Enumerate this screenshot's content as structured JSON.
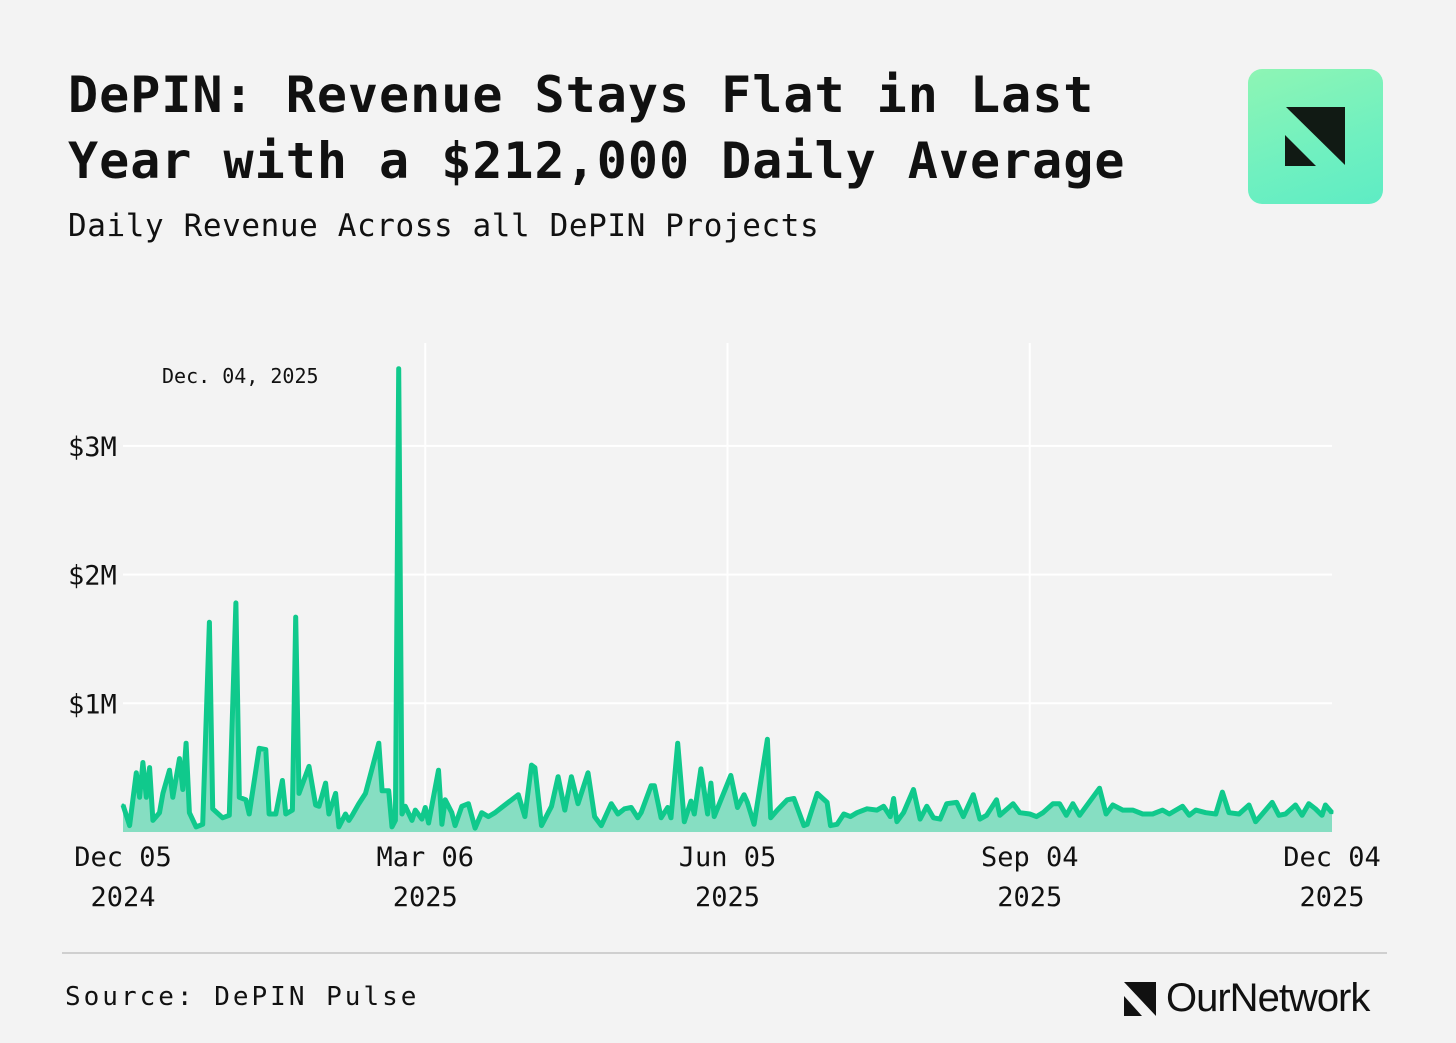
{
  "header": {
    "title_bold": "DePIN:",
    "title_rest": " Revenue Stays Flat in Last Year with a $212,000 Daily Average",
    "subtitle": "Daily Revenue Across all DePIN Projects"
  },
  "footer": {
    "source": "Source: DePIN Pulse",
    "brand": "OurNetwork"
  },
  "colors": {
    "line": "#10c98c",
    "fill": "#7fdcbf",
    "background": "#f3f3f3",
    "logo": "#6ff0c0"
  },
  "chart_data": {
    "type": "area",
    "title": "",
    "xlabel": "",
    "ylabel": "",
    "annotation": "Dec. 04, 2025",
    "xlim": [
      "2024-12-05",
      "2025-12-04"
    ],
    "ylim": [
      0,
      3.8
    ],
    "grid": true,
    "x_ticks": [
      {
        "date": "2024-12-05",
        "line1": "Dec 05",
        "line2": "2024"
      },
      {
        "date": "2025-03-06",
        "line1": "Mar 06",
        "line2": "2025"
      },
      {
        "date": "2025-06-05",
        "line1": "Jun 05",
        "line2": "2025"
      },
      {
        "date": "2025-09-04",
        "line1": "Sep 04",
        "line2": "2025"
      },
      {
        "date": "2025-12-04",
        "line1": "Dec 04",
        "line2": "2025"
      }
    ],
    "y_ticks": [
      {
        "value": 1,
        "label": "$1M"
      },
      {
        "value": 2,
        "label": "$2M"
      },
      {
        "value": 3,
        "label": "$3M"
      }
    ],
    "unit": "USD millions",
    "points": [
      [
        "2024-12-05",
        0.21
      ],
      [
        "2024-12-07",
        0.05
      ],
      [
        "2024-12-09",
        0.46
      ],
      [
        "2024-12-10",
        0.27
      ],
      [
        "2024-12-11",
        0.54
      ],
      [
        "2024-12-12",
        0.27
      ],
      [
        "2024-12-13",
        0.5
      ],
      [
        "2024-12-14",
        0.09
      ],
      [
        "2024-12-16",
        0.15
      ],
      [
        "2024-12-17",
        0.3
      ],
      [
        "2024-12-19",
        0.48
      ],
      [
        "2024-12-20",
        0.27
      ],
      [
        "2024-12-22",
        0.57
      ],
      [
        "2024-12-23",
        0.33
      ],
      [
        "2024-12-24",
        0.69
      ],
      [
        "2024-12-25",
        0.15
      ],
      [
        "2024-12-27",
        0.04
      ],
      [
        "2024-12-29",
        0.06
      ],
      [
        "2024-12-31",
        1.63
      ],
      [
        "2025-01-01",
        0.18
      ],
      [
        "2025-01-04",
        0.11
      ],
      [
        "2025-01-06",
        0.13
      ],
      [
        "2025-01-08",
        1.78
      ],
      [
        "2025-01-09",
        0.27
      ],
      [
        "2025-01-11",
        0.25
      ],
      [
        "2025-01-12",
        0.14
      ],
      [
        "2025-01-15",
        0.65
      ],
      [
        "2025-01-17",
        0.64
      ],
      [
        "2025-01-18",
        0.14
      ],
      [
        "2025-01-20",
        0.14
      ],
      [
        "2025-01-22",
        0.4
      ],
      [
        "2025-01-23",
        0.14
      ],
      [
        "2025-01-25",
        0.17
      ],
      [
        "2025-01-26",
        1.67
      ],
      [
        "2025-01-27",
        0.3
      ],
      [
        "2025-01-30",
        0.51
      ],
      [
        "2025-02-01",
        0.21
      ],
      [
        "2025-02-02",
        0.2
      ],
      [
        "2025-02-04",
        0.38
      ],
      [
        "2025-02-05",
        0.14
      ],
      [
        "2025-02-07",
        0.3
      ],
      [
        "2025-02-08",
        0.04
      ],
      [
        "2025-02-10",
        0.14
      ],
      [
        "2025-02-11",
        0.09
      ],
      [
        "2025-02-12",
        0.13
      ],
      [
        "2025-02-14",
        0.22
      ],
      [
        "2025-02-16",
        0.3
      ],
      [
        "2025-02-20",
        0.69
      ],
      [
        "2025-02-21",
        0.32
      ],
      [
        "2025-02-23",
        0.32
      ],
      [
        "2025-02-24",
        0.04
      ],
      [
        "2025-02-25",
        0.09
      ],
      [
        "2025-02-26",
        3.6
      ],
      [
        "2025-02-27",
        0.14
      ],
      [
        "2025-02-28",
        0.2
      ],
      [
        "2025-03-02",
        0.09
      ],
      [
        "2025-03-03",
        0.17
      ],
      [
        "2025-03-05",
        0.1
      ],
      [
        "2025-03-06",
        0.19
      ],
      [
        "2025-03-07",
        0.07
      ],
      [
        "2025-03-10",
        0.48
      ],
      [
        "2025-03-11",
        0.06
      ],
      [
        "2025-03-12",
        0.25
      ],
      [
        "2025-03-14",
        0.15
      ],
      [
        "2025-03-15",
        0.05
      ],
      [
        "2025-03-17",
        0.2
      ],
      [
        "2025-03-19",
        0.22
      ],
      [
        "2025-03-21",
        0.03
      ],
      [
        "2025-03-23",
        0.15
      ],
      [
        "2025-03-25",
        0.12
      ],
      [
        "2025-03-27",
        0.15
      ],
      [
        "2025-03-29",
        0.19
      ],
      [
        "2025-04-03",
        0.29
      ],
      [
        "2025-04-05",
        0.12
      ],
      [
        "2025-04-07",
        0.52
      ],
      [
        "2025-04-08",
        0.5
      ],
      [
        "2025-04-10",
        0.05
      ],
      [
        "2025-04-13",
        0.2
      ],
      [
        "2025-04-15",
        0.43
      ],
      [
        "2025-04-17",
        0.17
      ],
      [
        "2025-04-19",
        0.43
      ],
      [
        "2025-04-21",
        0.22
      ],
      [
        "2025-04-24",
        0.46
      ],
      [
        "2025-04-26",
        0.12
      ],
      [
        "2025-04-28",
        0.05
      ],
      [
        "2025-05-01",
        0.22
      ],
      [
        "2025-05-03",
        0.14
      ],
      [
        "2025-05-05",
        0.18
      ],
      [
        "2025-05-07",
        0.19
      ],
      [
        "2025-05-09",
        0.11
      ],
      [
        "2025-05-10",
        0.15
      ],
      [
        "2025-05-13",
        0.36
      ],
      [
        "2025-05-14",
        0.36
      ],
      [
        "2025-05-16",
        0.11
      ],
      [
        "2025-05-18",
        0.19
      ],
      [
        "2025-05-19",
        0.11
      ],
      [
        "2025-05-21",
        0.69
      ],
      [
        "2025-05-23",
        0.08
      ],
      [
        "2025-05-25",
        0.24
      ],
      [
        "2025-05-26",
        0.14
      ],
      [
        "2025-05-28",
        0.49
      ],
      [
        "2025-05-30",
        0.14
      ],
      [
        "2025-05-31",
        0.38
      ],
      [
        "2025-06-01",
        0.12
      ],
      [
        "2025-06-06",
        0.44
      ],
      [
        "2025-06-08",
        0.19
      ],
      [
        "2025-06-10",
        0.29
      ],
      [
        "2025-06-11",
        0.23
      ],
      [
        "2025-06-13",
        0.06
      ],
      [
        "2025-06-17",
        0.72
      ],
      [
        "2025-06-18",
        0.11
      ],
      [
        "2025-06-20",
        0.17
      ],
      [
        "2025-06-23",
        0.25
      ],
      [
        "2025-06-25",
        0.26
      ],
      [
        "2025-06-28",
        0.05
      ],
      [
        "2025-06-29",
        0.06
      ],
      [
        "2025-07-02",
        0.3
      ],
      [
        "2025-07-05",
        0.23
      ],
      [
        "2025-07-06",
        0.05
      ],
      [
        "2025-07-08",
        0.06
      ],
      [
        "2025-07-10",
        0.14
      ],
      [
        "2025-07-12",
        0.12
      ],
      [
        "2025-07-14",
        0.15
      ],
      [
        "2025-07-17",
        0.18
      ],
      [
        "2025-07-20",
        0.17
      ],
      [
        "2025-07-22",
        0.2
      ],
      [
        "2025-07-24",
        0.12
      ],
      [
        "2025-07-25",
        0.26
      ],
      [
        "2025-07-26",
        0.08
      ],
      [
        "2025-07-28",
        0.15
      ],
      [
        "2025-07-31",
        0.33
      ],
      [
        "2025-08-02",
        0.1
      ],
      [
        "2025-08-04",
        0.2
      ],
      [
        "2025-08-06",
        0.11
      ],
      [
        "2025-08-08",
        0.1
      ],
      [
        "2025-08-10",
        0.22
      ],
      [
        "2025-08-13",
        0.23
      ],
      [
        "2025-08-15",
        0.12
      ],
      [
        "2025-08-18",
        0.29
      ],
      [
        "2025-08-20",
        0.1
      ],
      [
        "2025-08-22",
        0.13
      ],
      [
        "2025-08-25",
        0.25
      ],
      [
        "2025-08-26",
        0.13
      ],
      [
        "2025-08-30",
        0.22
      ],
      [
        "2025-09-01",
        0.15
      ],
      [
        "2025-09-04",
        0.14
      ],
      [
        "2025-09-06",
        0.12
      ],
      [
        "2025-09-08",
        0.15
      ],
      [
        "2025-09-11",
        0.22
      ],
      [
        "2025-09-13",
        0.22
      ],
      [
        "2025-09-15",
        0.13
      ],
      [
        "2025-09-17",
        0.22
      ],
      [
        "2025-09-19",
        0.13
      ],
      [
        "2025-09-25",
        0.34
      ],
      [
        "2025-09-27",
        0.14
      ],
      [
        "2025-09-29",
        0.21
      ],
      [
        "2025-10-02",
        0.17
      ],
      [
        "2025-10-05",
        0.17
      ],
      [
        "2025-10-08",
        0.14
      ],
      [
        "2025-10-11",
        0.14
      ],
      [
        "2025-10-14",
        0.17
      ],
      [
        "2025-10-16",
        0.14
      ],
      [
        "2025-10-18",
        0.17
      ],
      [
        "2025-10-20",
        0.2
      ],
      [
        "2025-10-22",
        0.13
      ],
      [
        "2025-10-24",
        0.17
      ],
      [
        "2025-10-27",
        0.15
      ],
      [
        "2025-10-30",
        0.14
      ],
      [
        "2025-11-01",
        0.31
      ],
      [
        "2025-11-03",
        0.15
      ],
      [
        "2025-11-06",
        0.14
      ],
      [
        "2025-11-09",
        0.21
      ],
      [
        "2025-11-11",
        0.08
      ],
      [
        "2025-11-13",
        0.14
      ],
      [
        "2025-11-16",
        0.23
      ],
      [
        "2025-11-18",
        0.13
      ],
      [
        "2025-11-20",
        0.14
      ],
      [
        "2025-11-23",
        0.21
      ],
      [
        "2025-11-25",
        0.13
      ],
      [
        "2025-11-27",
        0.22
      ],
      [
        "2025-11-29",
        0.18
      ],
      [
        "2025-12-01",
        0.13
      ],
      [
        "2025-12-02",
        0.21
      ],
      [
        "2025-12-04",
        0.15
      ]
    ]
  }
}
